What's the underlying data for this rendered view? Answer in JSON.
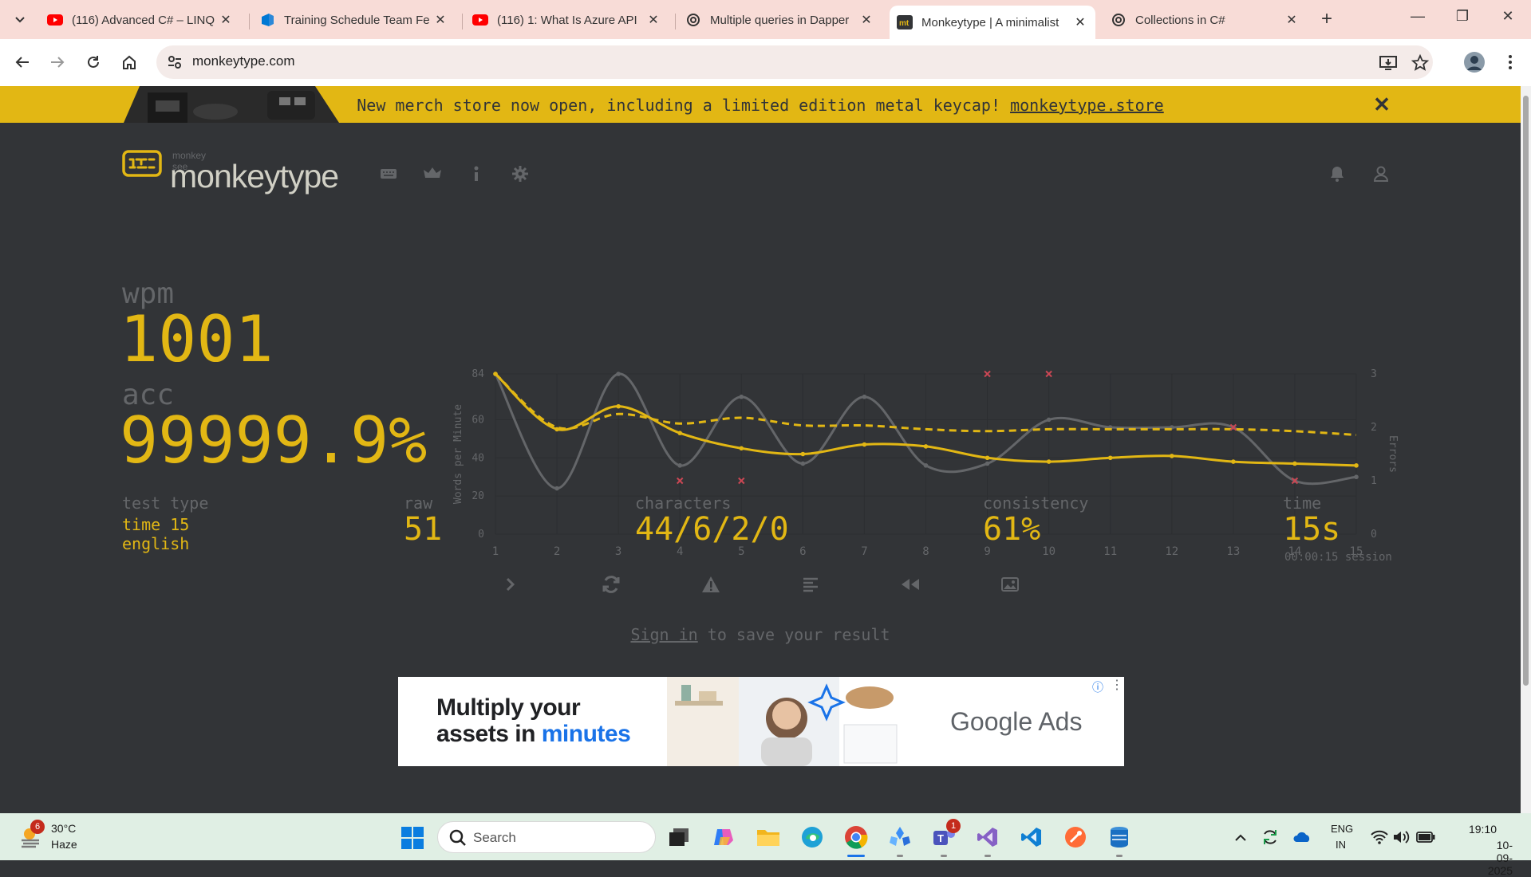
{
  "browser": {
    "tabs": [
      {
        "title": "(116) Advanced C# – LINQ",
        "icon": "youtube-icon"
      },
      {
        "title": "Training Schedule Team Fe",
        "icon": "azure-devops-icon"
      },
      {
        "title": "(116) 1: What Is Azure API",
        "icon": "youtube-icon"
      },
      {
        "title": "Multiple queries in Dapper",
        "icon": "chatgpt-icon"
      },
      {
        "title": "Monkeytype | A minimalist",
        "icon": "monkeytype-icon",
        "active": true
      },
      {
        "title": "Collections in C#",
        "icon": "chatgpt-icon"
      }
    ],
    "url": "monkeytype.com"
  },
  "banner": {
    "text": "New merch store now open, including a limited edition metal keycap! ",
    "link": "monkeytype.store"
  },
  "header": {
    "tagline": "monkey see",
    "logo": "monkeytype"
  },
  "result": {
    "wpm_label": "wpm",
    "wpm": "1001",
    "acc_label": "acc",
    "acc": "99999.9%"
  },
  "stats": {
    "test_type_label": "test type",
    "test_type_mode": "time 15",
    "test_type_lang": "english",
    "raw_label": "raw",
    "raw": "51",
    "characters_label": "characters",
    "characters": "44/6/2/0",
    "consistency_label": "consistency",
    "consistency": "61%",
    "time_label": "time",
    "time": "15s",
    "session": "00:00:15 session"
  },
  "actions": {
    "signin_link": "Sign in",
    "signin_rest": " to save your result"
  },
  "ad": {
    "headline_1": "Multiply your",
    "headline_2": "assets in ",
    "headline_accent": "minutes",
    "brand": "Google Ads"
  },
  "taskbar": {
    "badge": "6",
    "temp": "30°C",
    "weather": "Haze",
    "search": "Search",
    "teams_badge": "1",
    "lang_1": "ENG",
    "lang_2": "IN",
    "time": "19:10",
    "date": "10-09-2025"
  },
  "colors": {
    "bg": "#323437",
    "main": "#e2b714",
    "sub": "#646669",
    "text": "#d1d0c5",
    "error": "#ca4754"
  },
  "chart_data": {
    "type": "line",
    "x": [
      1,
      2,
      3,
      4,
      5,
      6,
      7,
      8,
      9,
      10,
      11,
      12,
      13,
      14,
      15
    ],
    "ylabel": "Words per Minute",
    "y2label": "Errors",
    "ylim": [
      0,
      84
    ],
    "y2lim": [
      0,
      3
    ],
    "yticks": [
      0,
      20,
      40,
      60,
      84
    ],
    "y2ticks": [
      0,
      1,
      2,
      3
    ],
    "series": [
      {
        "values": [
          84,
          55,
          67,
          53,
          45,
          42,
          47,
          46,
          40,
          38,
          40,
          41,
          38,
          37,
          36
        ],
        "color": "#e2b714"
      },
      {
        "values": [
          84,
          24,
          84,
          36,
          72,
          37,
          72,
          36,
          37,
          60,
          56,
          56,
          56,
          28,
          30
        ],
        "color": "#646669"
      },
      {
        "values": [
          84,
          56,
          63,
          58,
          61,
          57,
          57,
          55,
          54,
          55,
          55,
          55,
          55,
          54,
          52
        ],
        "color": "#e2b714",
        "dashed": true
      }
    ],
    "errors": [
      {
        "x": 4,
        "y2": 1
      },
      {
        "x": 5,
        "y2": 1
      },
      {
        "x": 9,
        "y2": 3
      },
      {
        "x": 10,
        "y2": 3
      },
      {
        "x": 13,
        "y2": 2
      },
      {
        "x": 14,
        "y2": 1
      }
    ],
    "grid": true
  }
}
